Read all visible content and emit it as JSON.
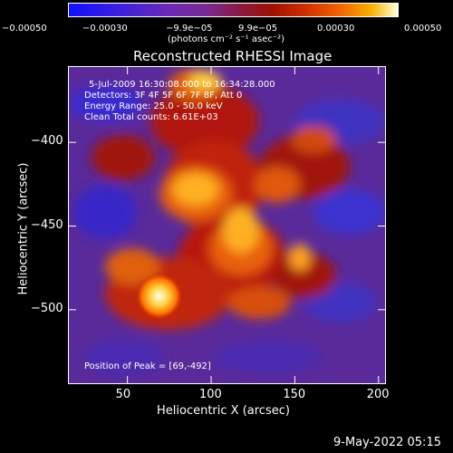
{
  "colorbar": {
    "tick_labels": [
      "−0.00050",
      "−0.00030",
      "−9.9e−05",
      "9.9e−05",
      "0.00030",
      "0.00050"
    ],
    "unit_label": "(photons cm⁻² s⁻¹ asec⁻²)",
    "colors": [
      "#1010ff",
      "#6a2ab8",
      "#a01000",
      "#f06000",
      "#ffffe0"
    ]
  },
  "chart_data": {
    "type": "heatmap",
    "title": "Reconstructed RHESSI Image",
    "xlabel": "Heliocentric X (arcsec)",
    "ylabel": "Heliocentric Y (arcsec)",
    "xlim": [
      15,
      205
    ],
    "ylim": [
      -545,
      -355
    ],
    "xticks": [
      50,
      100,
      150,
      200
    ],
    "yticks": [
      -400,
      -450,
      -500
    ],
    "annotations": [
      "5-Jul-2009 16:30:08.000 to 16:34:28.000",
      "Detectors: 3F 4F 5F 6F 7F 8F, Att 0",
      "Energy Range: 25.0 - 50.0 keV",
      "Clean     Total counts: 6.61E+03"
    ],
    "peak_label": "Position of Peak = [69,-492]",
    "peak": [
      69,
      -492
    ]
  },
  "footer": {
    "datestamp": "9-May-2022 05:15"
  }
}
